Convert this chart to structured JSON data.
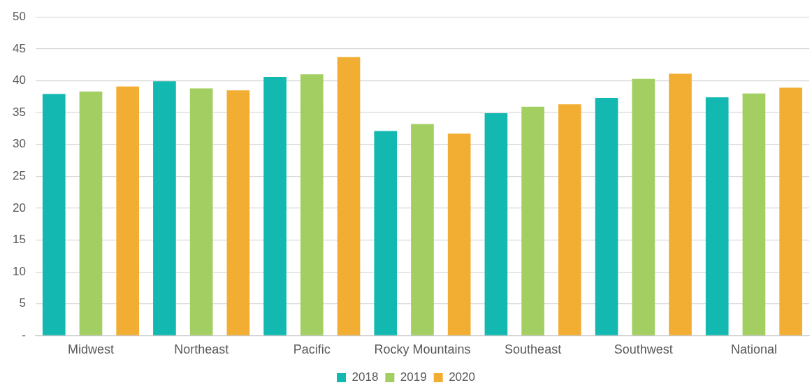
{
  "chart_data": {
    "type": "bar",
    "categories": [
      "Midwest",
      "Northeast",
      "Pacific",
      "Rocky Mountains",
      "Southeast",
      "Southwest",
      "National"
    ],
    "series": [
      {
        "name": "2018",
        "color": "#13b9b0",
        "values": [
          37.9,
          39.9,
          40.6,
          32.1,
          34.9,
          37.3,
          37.4
        ]
      },
      {
        "name": "2019",
        "color": "#a3cf62",
        "values": [
          38.3,
          38.8,
          41.0,
          33.2,
          35.9,
          40.3,
          38.0
        ]
      },
      {
        "name": "2020",
        "color": "#f2ae33",
        "values": [
          39.1,
          38.5,
          43.7,
          31.7,
          36.3,
          41.1,
          38.9
        ]
      }
    ],
    "ylim": [
      0,
      50
    ],
    "yticks": [
      {
        "value": 0,
        "label": "-"
      },
      5,
      10,
      15,
      20,
      25,
      30,
      35,
      40,
      45,
      50
    ],
    "grid": "y",
    "legend": "bottom"
  }
}
